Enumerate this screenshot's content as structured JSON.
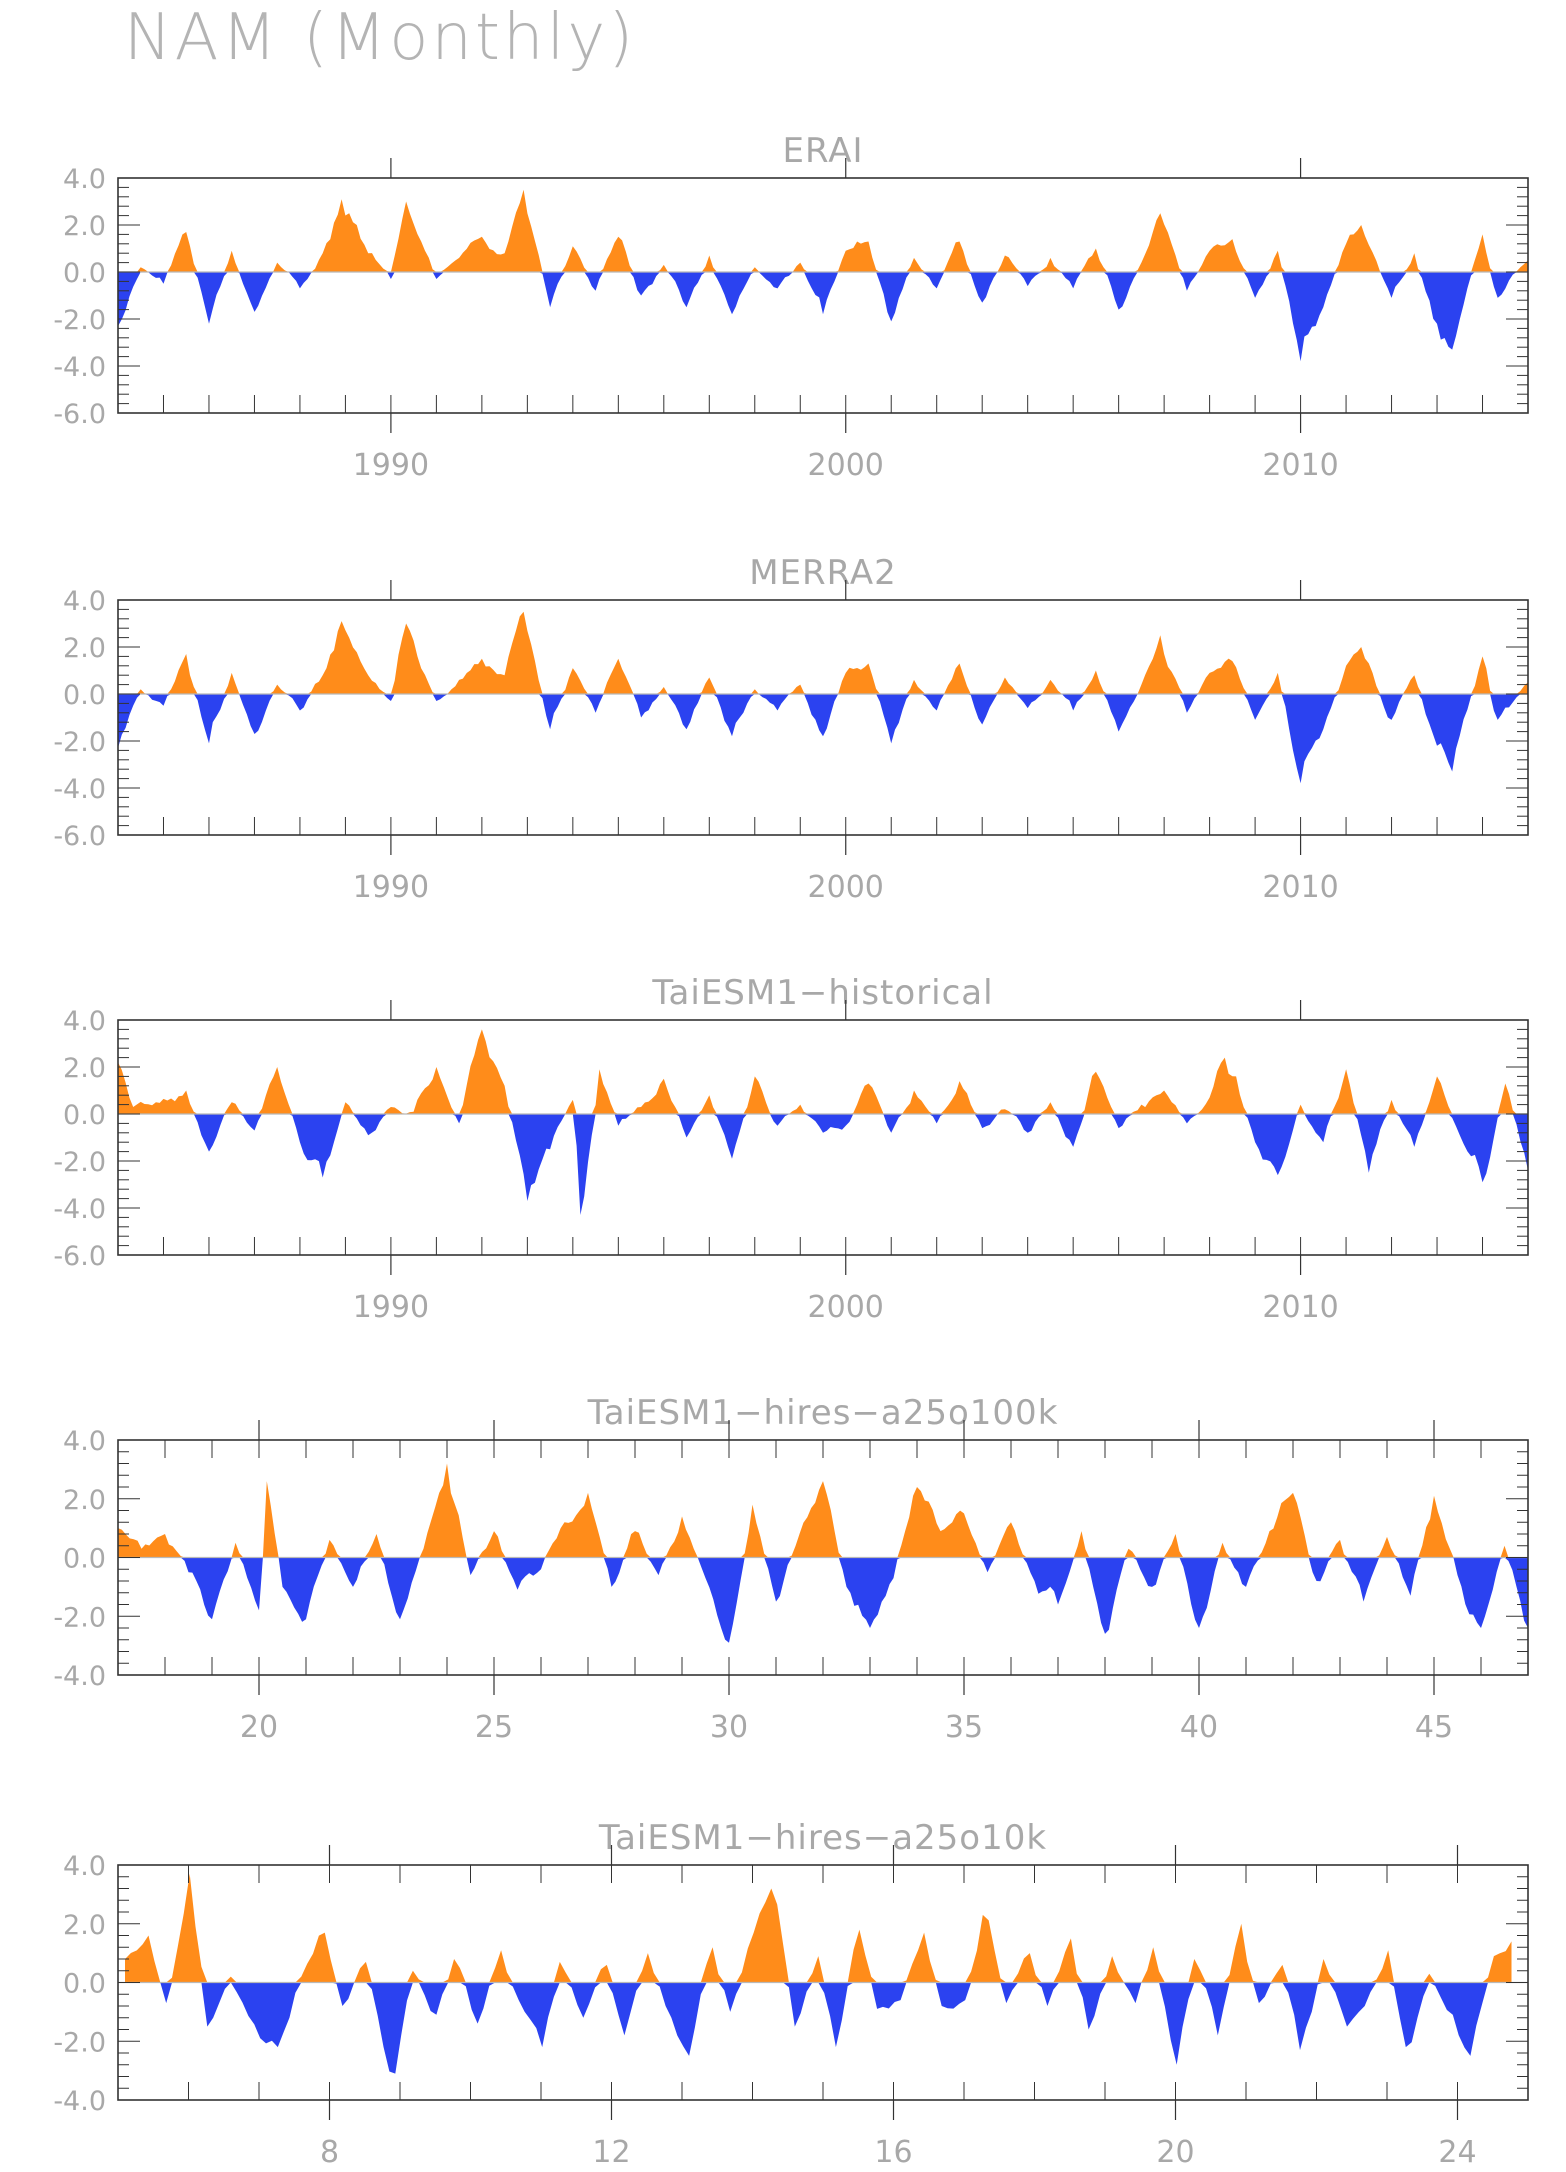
{
  "figure": {
    "title": "NAM (Monthly)"
  },
  "colors": {
    "positive": "#FF8C1A",
    "negative": "#2B42F0",
    "axis": "#333333",
    "label": "#a8a8a8",
    "zero_line": "#b8b8b8"
  },
  "chart_data": [
    {
      "type": "area",
      "title": "ERAI",
      "xlabel": "",
      "ylabel": "",
      "xlim": [
        1984.0,
        2015.0
      ],
      "ylim": [
        -6.0,
        4.0
      ],
      "yticks": [
        -6.0,
        -4.0,
        -2.0,
        0.0,
        2.0,
        4.0
      ],
      "ytick_labels": [
        "-6.0",
        "-4.0",
        "-2.0",
        "0.0",
        "2.0",
        "4.0"
      ],
      "xticks": [
        1990,
        2000,
        2010
      ],
      "xtick_labels": [
        "1990",
        "2000",
        "2010"
      ],
      "xminor_step": 1,
      "fill": "positive-orange / negative-blue",
      "x": [
        1984.0,
        1984.5,
        1985.0,
        1985.5,
        1986.0,
        1986.5,
        1987.0,
        1987.5,
        1988.0,
        1988.5,
        1988.9,
        1989.5,
        1990.0,
        1990.3,
        1991.0,
        1991.5,
        1992.0,
        1992.5,
        1992.9,
        1993.5,
        1994.0,
        1994.5,
        1995.0,
        1995.5,
        1996.0,
        1996.5,
        1997.0,
        1997.5,
        1998.0,
        1998.5,
        1999.0,
        1999.5,
        2000.0,
        2000.5,
        2001.0,
        2001.5,
        2002.0,
        2002.5,
        2003.0,
        2003.5,
        2004.0,
        2004.5,
        2005.0,
        2005.5,
        2006.0,
        2006.5,
        2006.9,
        2007.5,
        2008.0,
        2008.5,
        2009.0,
        2009.5,
        2010.0,
        2010.5,
        2011.0,
        2011.3,
        2012.0,
        2012.5,
        2013.0,
        2013.3,
        2014.0,
        2014.3,
        2015.0
      ],
      "y": [
        -2.3,
        0.2,
        -0.5,
        1.7,
        -2.2,
        0.9,
        -1.7,
        0.4,
        -0.7,
        0.8,
        3.1,
        0.8,
        -0.3,
        3.0,
        -0.3,
        0.6,
        1.5,
        0.8,
        3.5,
        -1.5,
        1.1,
        -0.8,
        1.5,
        -1.0,
        0.3,
        -1.5,
        0.7,
        -1.8,
        0.2,
        -0.7,
        0.4,
        -1.8,
        0.9,
        1.3,
        -2.1,
        0.6,
        -0.7,
        1.3,
        -1.3,
        0.7,
        -0.6,
        0.6,
        -0.7,
        1.0,
        -1.6,
        0.4,
        2.5,
        -0.8,
        0.9,
        1.4,
        -1.1,
        0.9,
        -3.8,
        -1.5,
        1.2,
        2.0,
        -1.1,
        0.8,
        -2.2,
        -3.3,
        1.6,
        -1.1,
        0.5
      ]
    },
    {
      "type": "area",
      "title": "MERRA2",
      "xlabel": "",
      "ylabel": "",
      "xlim": [
        1984.0,
        2015.0
      ],
      "ylim": [
        -6.0,
        4.0
      ],
      "yticks": [
        -6.0,
        -4.0,
        -2.0,
        0.0,
        2.0,
        4.0
      ],
      "ytick_labels": [
        "-6.0",
        "-4.0",
        "-2.0",
        "0.0",
        "2.0",
        "4.0"
      ],
      "xticks": [
        1990,
        2000,
        2010
      ],
      "xtick_labels": [
        "1990",
        "2000",
        "2010"
      ],
      "xminor_step": 1,
      "fill": "positive-orange / negative-blue",
      "x": [
        1984.0,
        1984.5,
        1985.0,
        1985.5,
        1986.0,
        1986.5,
        1987.0,
        1987.5,
        1988.0,
        1988.5,
        1988.9,
        1989.5,
        1990.0,
        1990.3,
        1991.0,
        1991.5,
        1992.0,
        1992.5,
        1992.9,
        1993.5,
        1994.0,
        1994.5,
        1995.0,
        1995.5,
        1996.0,
        1996.5,
        1997.0,
        1997.5,
        1998.0,
        1998.5,
        1999.0,
        1999.5,
        2000.0,
        2000.5,
        2001.0,
        2001.5,
        2002.0,
        2002.5,
        2003.0,
        2003.5,
        2004.0,
        2004.5,
        2005.0,
        2005.5,
        2006.0,
        2006.5,
        2006.9,
        2007.5,
        2008.0,
        2008.5,
        2009.0,
        2009.5,
        2010.0,
        2010.5,
        2011.0,
        2011.3,
        2012.0,
        2012.5,
        2013.0,
        2013.3,
        2014.0,
        2014.3,
        2015.0
      ],
      "y": [
        -2.3,
        0.2,
        -0.5,
        1.7,
        -2.1,
        0.9,
        -1.7,
        0.4,
        -0.7,
        0.8,
        3.1,
        0.8,
        -0.3,
        3.0,
        -0.3,
        0.6,
        1.5,
        0.8,
        3.5,
        -1.5,
        1.1,
        -0.8,
        1.5,
        -1.0,
        0.3,
        -1.5,
        0.7,
        -1.8,
        0.2,
        -0.7,
        0.4,
        -1.8,
        0.9,
        1.3,
        -2.1,
        0.6,
        -0.7,
        1.3,
        -1.3,
        0.7,
        -0.6,
        0.6,
        -0.7,
        1.0,
        -1.6,
        0.4,
        2.5,
        -0.8,
        0.9,
        1.4,
        -1.1,
        0.9,
        -3.8,
        -1.5,
        1.2,
        2.0,
        -1.1,
        0.8,
        -2.2,
        -3.3,
        1.6,
        -1.1,
        0.5
      ]
    },
    {
      "type": "area",
      "title": "TaiESM1−historical",
      "xlabel": "",
      "ylabel": "",
      "xlim": [
        1984.0,
        2015.0
      ],
      "ylim": [
        -6.0,
        4.0
      ],
      "yticks": [
        -6.0,
        -4.0,
        -2.0,
        0.0,
        2.0,
        4.0
      ],
      "ytick_labels": [
        "-6.0",
        "-4.0",
        "-2.0",
        "0.0",
        "2.0",
        "4.0"
      ],
      "xticks": [
        1990,
        2000,
        2010
      ],
      "xtick_labels": [
        "1990",
        "2000",
        "2010"
      ],
      "xminor_step": 1,
      "fill": "positive-orange / negative-blue",
      "x": [
        1984.0,
        1984.3,
        1984.8,
        1985.5,
        1986.0,
        1986.5,
        1987.0,
        1987.5,
        1988.0,
        1988.5,
        1989.0,
        1989.5,
        1990.0,
        1990.5,
        1991.0,
        1991.5,
        1992.0,
        1992.5,
        1993.0,
        1993.5,
        1994.0,
        1994.2,
        1994.6,
        1995.0,
        1995.5,
        1996.0,
        1996.5,
        1997.0,
        1997.5,
        1998.0,
        1998.5,
        1999.0,
        1999.5,
        2000.0,
        2000.5,
        2001.0,
        2001.5,
        2002.0,
        2002.5,
        2003.0,
        2003.5,
        2004.0,
        2004.5,
        2005.0,
        2005.5,
        2006.0,
        2006.5,
        2007.0,
        2007.5,
        2008.0,
        2008.3,
        2008.6,
        2009.0,
        2009.5,
        2010.0,
        2010.5,
        2011.0,
        2011.5,
        2012.0,
        2012.5,
        2013.0,
        2013.5,
        2014.0,
        2014.5,
        2015.0
      ],
      "y": [
        2.2,
        0.3,
        0.5,
        1.0,
        -1.6,
        0.5,
        -0.7,
        2.0,
        -1.2,
        -2.7,
        0.5,
        -0.9,
        0.3,
        0.1,
        2.0,
        -0.4,
        3.6,
        1.2,
        -3.7,
        -1.5,
        0.6,
        -4.3,
        1.9,
        -0.5,
        0.3,
        1.5,
        -1.0,
        0.8,
        -1.9,
        1.6,
        -0.5,
        0.4,
        -0.8,
        -0.5,
        1.3,
        -0.8,
        1.0,
        -0.4,
        1.4,
        -0.6,
        0.2,
        -0.8,
        0.5,
        -1.4,
        1.8,
        -0.6,
        0.4,
        1.0,
        -0.4,
        0.7,
        2.4,
        1.6,
        -1.2,
        -2.6,
        0.4,
        -1.2,
        1.9,
        -2.5,
        0.6,
        -1.4,
        1.6,
        -0.9,
        -2.9,
        1.3,
        -2.4
      ]
    },
    {
      "type": "area",
      "title": "TaiESM1−hires−a25o100k",
      "xlabel": "",
      "ylabel": "",
      "xlim": [
        17.0,
        47.0
      ],
      "ylim": [
        -4.0,
        4.0
      ],
      "yticks": [
        -4.0,
        -2.0,
        0.0,
        2.0,
        4.0
      ],
      "ytick_labels": [
        "-4.0",
        "-2.0",
        "0.0",
        "2.0",
        "4.0"
      ],
      "xticks": [
        20,
        25,
        30,
        35,
        40,
        45
      ],
      "xtick_labels": [
        "20",
        "25",
        "30",
        "35",
        "40",
        "45"
      ],
      "xminor_step": 1,
      "fill": "positive-orange / negative-blue",
      "x": [
        17.0,
        17.5,
        18.0,
        18.5,
        19.0,
        19.5,
        20.0,
        20.2,
        20.5,
        21.0,
        21.5,
        22.0,
        22.5,
        23.0,
        23.5,
        24.0,
        24.5,
        25.0,
        25.5,
        26.0,
        26.5,
        27.0,
        27.5,
        28.0,
        28.5,
        29.0,
        29.5,
        30.0,
        30.5,
        31.0,
        31.5,
        32.0,
        32.5,
        33.0,
        33.5,
        34.0,
        34.5,
        35.0,
        35.5,
        36.0,
        36.5,
        37.0,
        37.5,
        38.0,
        38.5,
        39.0,
        39.5,
        40.0,
        40.5,
        41.0,
        41.5,
        42.0,
        42.5,
        43.0,
        43.5,
        44.0,
        44.5,
        45.0,
        45.5,
        46.0,
        46.5,
        47.0
      ],
      "y": [
        1.0,
        0.3,
        0.8,
        -0.5,
        -2.1,
        0.5,
        -1.8,
        2.6,
        -1.0,
        -2.1,
        0.6,
        -1.0,
        0.8,
        -2.1,
        0.3,
        3.2,
        -0.6,
        0.9,
        -1.1,
        -0.4,
        1.2,
        2.2,
        -1.0,
        0.9,
        -0.6,
        1.4,
        -0.7,
        -2.9,
        1.8,
        -1.5,
        0.8,
        2.6,
        -1.0,
        -2.4,
        -0.7,
        2.4,
        0.9,
        1.5,
        -0.5,
        1.2,
        -0.8,
        -1.6,
        0.9,
        -2.6,
        0.3,
        -1.0,
        0.8,
        -2.4,
        0.5,
        -1.0,
        0.9,
        2.2,
        -0.8,
        0.6,
        -1.5,
        0.7,
        -1.3,
        2.1,
        -0.6,
        -2.4,
        0.4,
        -2.4
      ]
    },
    {
      "type": "area",
      "title": "TaiESM1−hires−a25o10k",
      "xlabel": "",
      "ylabel": "",
      "xlim": [
        5.0,
        25.0
      ],
      "ylim": [
        -4.0,
        4.0
      ],
      "yticks": [
        -4.0,
        -2.0,
        0.0,
        2.0,
        4.0
      ],
      "ytick_labels": [
        "-4.0",
        "-2.0",
        "0.0",
        "2.0",
        "4.0"
      ],
      "xticks": [
        8,
        12,
        16,
        20,
        24
      ],
      "xtick_labels": [
        "8",
        "12",
        "16",
        "20",
        "24"
      ],
      "xminor_step": 1,
      "fill": "positive-orange / negative-blue",
      "x": [
        5.1,
        5.4,
        5.7,
        6.0,
        6.3,
        6.6,
        7.0,
        7.3,
        7.6,
        7.9,
        8.2,
        8.5,
        8.9,
        9.2,
        9.5,
        9.8,
        10.1,
        10.4,
        10.7,
        11.0,
        11.3,
        11.6,
        11.9,
        12.2,
        12.5,
        12.8,
        13.1,
        13.4,
        13.7,
        14.0,
        14.3,
        14.6,
        14.9,
        15.2,
        15.5,
        15.8,
        16.1,
        16.4,
        16.7,
        17.0,
        17.3,
        17.6,
        17.9,
        18.2,
        18.5,
        18.8,
        19.1,
        19.4,
        19.7,
        20.0,
        20.3,
        20.6,
        20.9,
        21.2,
        21.5,
        21.8,
        22.1,
        22.4,
        22.7,
        23.0,
        23.3,
        23.6,
        23.9,
        24.2,
        24.5,
        24.8
      ],
      "y": [
        0.8,
        1.6,
        -0.7,
        3.7,
        -1.5,
        0.2,
        -1.9,
        -2.2,
        0.2,
        1.7,
        -0.8,
        0.7,
        -3.1,
        0.4,
        -1.1,
        0.8,
        -1.4,
        1.1,
        -0.6,
        -2.2,
        0.7,
        -1.2,
        0.6,
        -1.8,
        1.0,
        -0.8,
        -2.5,
        1.2,
        -1.0,
        1.7,
        3.2,
        -1.5,
        0.9,
        -2.2,
        1.8,
        -0.9,
        -0.6,
        1.7,
        -0.8,
        -0.6,
        2.3,
        -0.7,
        1.0,
        -0.8,
        1.5,
        -1.6,
        0.9,
        -0.7,
        1.2,
        -2.8,
        0.8,
        -1.8,
        2.0,
        -0.7,
        0.6,
        -2.3,
        0.8,
        -1.5,
        -0.8,
        1.1,
        -2.2,
        0.3,
        -1.1,
        -2.5,
        0.9,
        1.4
      ]
    }
  ]
}
